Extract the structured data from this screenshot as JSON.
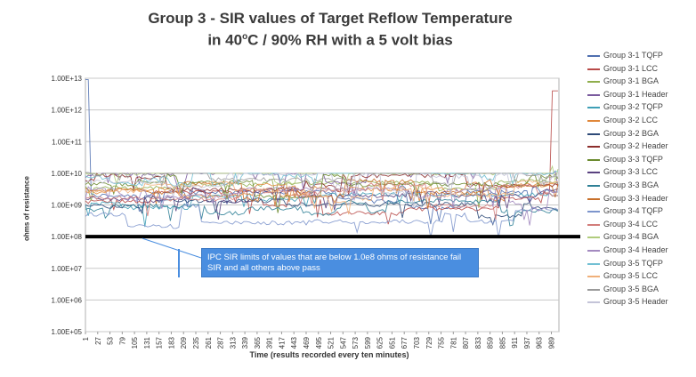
{
  "chart_data": {
    "type": "line",
    "title_line1": "Group 3 - SIR values of Target Reflow Temperature",
    "title_line2_pre": "in 40",
    "title_line2_sup": "o",
    "title_line2_post": "C / 90% RH with a 5 volt bias",
    "xlabel": "Time (results recorded every ten minutes)",
    "ylabel": "ohms of resistance",
    "y_scale": "log",
    "ylim": [
      100000,
      10000000000000
    ],
    "y_ticks": [
      "1.00E+05",
      "1.00E+06",
      "1.00E+07",
      "1.00E+08",
      "1.00E+09",
      "1.00E+10",
      "1.00E+11",
      "1.00E+12",
      "1.00E+13"
    ],
    "y_tick_values": [
      100000,
      1000000,
      10000000,
      100000000,
      1000000000,
      10000000000,
      100000000000,
      1000000000000,
      10000000000000
    ],
    "xlim": [
      1,
      1005
    ],
    "x_ticks": [
      "1",
      "27",
      "53",
      "79",
      "105",
      "131",
      "157",
      "183",
      "209",
      "235",
      "261",
      "287",
      "313",
      "339",
      "365",
      "391",
      "417",
      "443",
      "469",
      "495",
      "521",
      "547",
      "573",
      "599",
      "625",
      "651",
      "677",
      "703",
      "729",
      "755",
      "781",
      "807",
      "833",
      "859",
      "885",
      "911",
      "937",
      "963",
      "989"
    ],
    "grid": true,
    "legend_position": "right",
    "threshold": {
      "value": 100000000,
      "annotation": "IPC SIR limits of values that are  below 1.0e8 ohms of resistance fail SIR and all others above pass"
    },
    "series": [
      {
        "name": "Group 3-1 TQFP",
        "color": "#4f6fb0",
        "base": 2000000000.0
      },
      {
        "name": "Group 3-1 LCC",
        "color": "#b84a48",
        "base": 1300000000.0
      },
      {
        "name": "Group 3-1 BGA",
        "color": "#8fae4c",
        "base": 3500000000.0
      },
      {
        "name": "Group 3-1 Header",
        "color": "#7a5a9e",
        "base": 8500000000.0
      },
      {
        "name": "Group 3-2 TQFP",
        "color": "#3f9fb6",
        "base": 1100000000.0
      },
      {
        "name": "Group 3-2 LCC",
        "color": "#e0873a",
        "base": 2600000000.0
      },
      {
        "name": "Group 3-2 BGA",
        "color": "#2e4a78",
        "base": 900000000.0
      },
      {
        "name": "Group 3-2 Header",
        "color": "#8c2e2c",
        "base": 6000000000.0
      },
      {
        "name": "Group 3-3 TQFP",
        "color": "#6b8a2e",
        "base": 4500000000.0
      },
      {
        "name": "Group 3-3 LCC",
        "color": "#5a4280",
        "base": 1600000000.0
      },
      {
        "name": "Group 3-3 BGA",
        "color": "#2f8096",
        "base": 700000000.0
      },
      {
        "name": "Group 3-3 Header",
        "color": "#c8702a",
        "base": 3000000000.0
      },
      {
        "name": "Group 3-4 TQFP",
        "color": "#7d95cc",
        "base": 500000000.0
      },
      {
        "name": "Group 3-4 LCC",
        "color": "#d27c7a",
        "base": 2200000000.0
      },
      {
        "name": "Group 3-4 BGA",
        "color": "#b0cc7c",
        "base": 10000000000.0
      },
      {
        "name": "Group 3-4 Header",
        "color": "#a38ac0",
        "base": 1800000000.0
      },
      {
        "name": "Group 3-5 TQFP",
        "color": "#72c0d4",
        "base": 7500000000.0
      },
      {
        "name": "Group 3-5 LCC",
        "color": "#f0b07a",
        "base": 2800000000.0
      },
      {
        "name": "Group 3-5 BGA",
        "color": "#9a9a9a",
        "base": 9500000000.0
      },
      {
        "name": "Group 3-5 Header",
        "color": "#c4c4d8",
        "base": 5500000000.0
      }
    ]
  }
}
